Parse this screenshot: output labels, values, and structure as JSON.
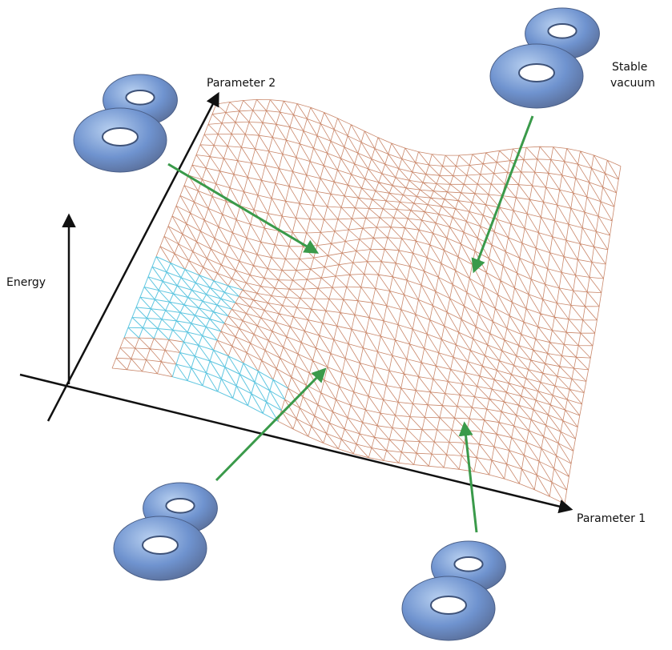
{
  "axes": {
    "energy": "Energy",
    "parameter_1": "Parameter 1",
    "parameter_2": "Parameter 2"
  },
  "annotations": {
    "stable_vacuum": [
      "Stable",
      "vacuum"
    ]
  }
}
